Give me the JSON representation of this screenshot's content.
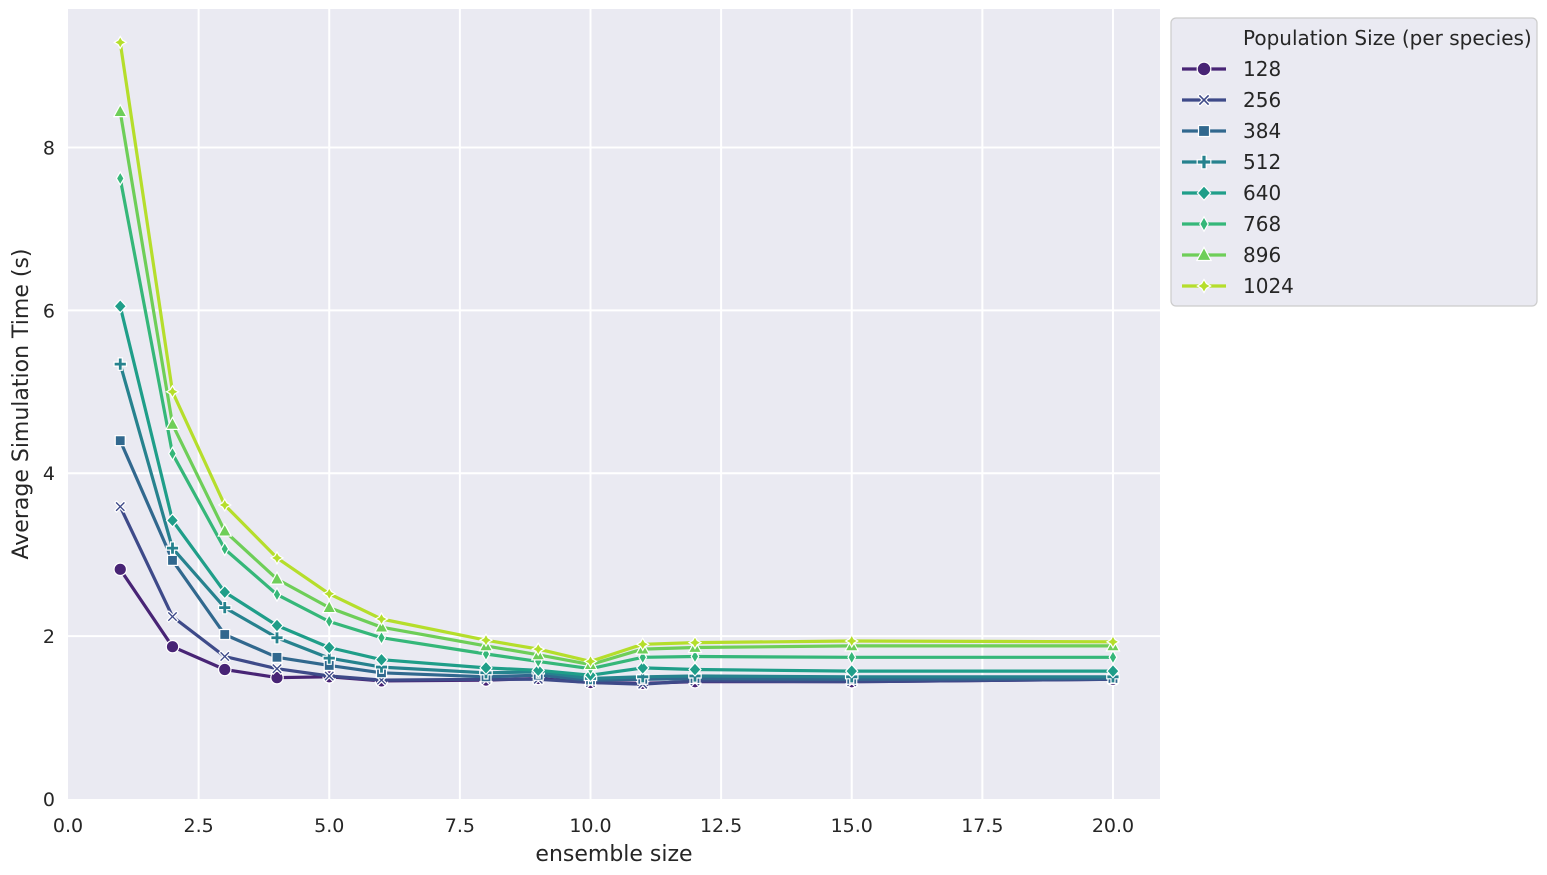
{
  "chart_data": {
    "type": "line",
    "title": "",
    "xlabel": "ensemble size",
    "ylabel": "Average Simulation Time (s)",
    "xlim": [
      0,
      20.9
    ],
    "ylim": [
      0,
      9.7
    ],
    "xticks": [
      0.0,
      2.5,
      5.0,
      7.5,
      10.0,
      12.5,
      15.0,
      17.5,
      20.0
    ],
    "xtick_labels": [
      "0.0",
      "2.5",
      "5.0",
      "7.5",
      "10.0",
      "12.5",
      "15.0",
      "17.5",
      "20.0"
    ],
    "yticks": [
      0,
      2,
      4,
      6,
      8
    ],
    "ytick_labels": [
      "0",
      "2",
      "4",
      "6",
      "8"
    ],
    "grid": true,
    "legend": {
      "title": "Population Size (per species)",
      "placement": "outside-top-right"
    },
    "x": [
      1,
      2,
      3,
      4,
      5,
      6,
      8,
      9,
      10,
      11,
      12,
      15,
      20
    ],
    "series": [
      {
        "name": "128",
        "color": "#482475",
        "marker": "circle",
        "values": [
          2.82,
          1.87,
          1.59,
          1.49,
          1.5,
          1.45,
          1.46,
          1.48,
          1.43,
          1.42,
          1.44,
          1.44,
          1.47
        ]
      },
      {
        "name": "256",
        "color": "#3e4a89",
        "marker": "x",
        "values": [
          3.59,
          2.24,
          1.75,
          1.6,
          1.51,
          1.46,
          1.47,
          1.47,
          1.43,
          1.41,
          1.45,
          1.44,
          1.47
        ]
      },
      {
        "name": "384",
        "color": "#31688e",
        "marker": "square",
        "values": [
          4.4,
          2.93,
          2.02,
          1.74,
          1.64,
          1.55,
          1.5,
          1.52,
          1.46,
          1.47,
          1.48,
          1.47,
          1.48
        ]
      },
      {
        "name": "512",
        "color": "#26828e",
        "marker": "plus",
        "values": [
          5.34,
          3.08,
          2.35,
          1.98,
          1.73,
          1.62,
          1.55,
          1.56,
          1.48,
          1.5,
          1.51,
          1.5,
          1.5
        ]
      },
      {
        "name": "640",
        "color": "#1f9e89",
        "marker": "diamond",
        "values": [
          6.05,
          3.42,
          2.54,
          2.13,
          1.86,
          1.71,
          1.61,
          1.58,
          1.52,
          1.61,
          1.59,
          1.57,
          1.57
        ]
      },
      {
        "name": "768",
        "color": "#35b779",
        "marker": "thin_diamond",
        "values": [
          7.62,
          4.24,
          3.07,
          2.51,
          2.18,
          1.98,
          1.78,
          1.69,
          1.6,
          1.74,
          1.75,
          1.74,
          1.74
        ]
      },
      {
        "name": "896",
        "color": "#6ece58",
        "marker": "triangle",
        "values": [
          8.44,
          4.6,
          3.29,
          2.7,
          2.35,
          2.11,
          1.88,
          1.77,
          1.65,
          1.84,
          1.86,
          1.88,
          1.88
        ]
      },
      {
        "name": "1024",
        "color": "#b5de2b",
        "marker": "star4",
        "values": [
          9.29,
          5.0,
          3.61,
          2.96,
          2.52,
          2.21,
          1.95,
          1.84,
          1.69,
          1.9,
          1.92,
          1.94,
          1.93
        ]
      }
    ]
  }
}
